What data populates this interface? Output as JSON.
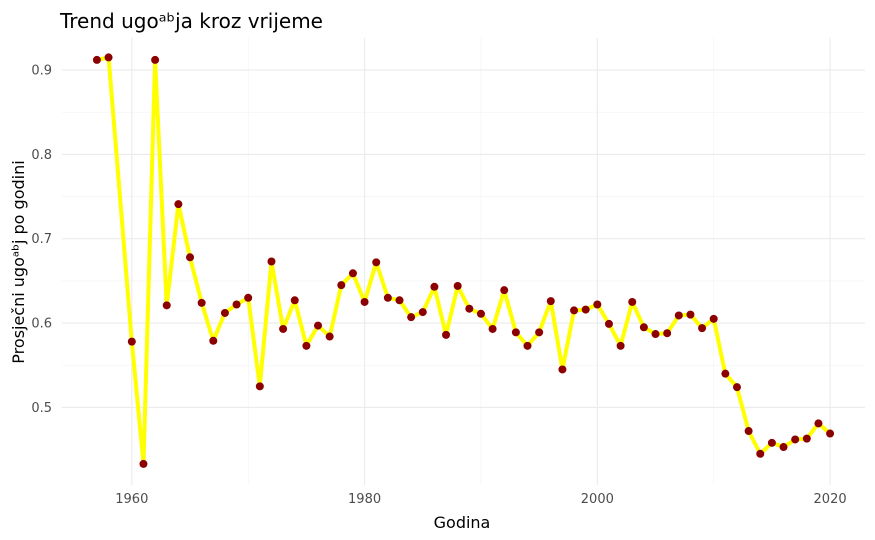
{
  "chart_data": {
    "type": "line",
    "title": "Trend ugoᵃᵇja kroz vrijeme",
    "xlabel": "Godina",
    "ylabel": "Prosječni ugoᵃᵇj po godini",
    "xlim": [
      1954,
      2023
    ],
    "ylim": [
      0.408,
      0.938
    ],
    "xticks": [
      1960,
      1980,
      2000,
      2020
    ],
    "yticks": [
      0.5,
      0.6,
      0.7,
      0.8,
      0.9
    ],
    "grid": true,
    "line_color": "#ffff00",
    "point_color": "#8b0000",
    "series": [
      {
        "x": [
          1957,
          1958,
          1960,
          1961,
          1962,
          1963,
          1964,
          1965,
          1966,
          1967,
          1968,
          1969,
          1970,
          1971,
          1972,
          1973,
          1974,
          1975,
          1976,
          1977,
          1978,
          1979,
          1980,
          1981,
          1982,
          1983,
          1984,
          1985,
          1986,
          1987,
          1988,
          1989,
          1990,
          1991,
          1992,
          1993,
          1994,
          1995,
          1996,
          1997,
          1998,
          1999,
          2000,
          2001,
          2002,
          2003,
          2004,
          2005,
          2006,
          2007,
          2008,
          2009,
          2010,
          2011,
          2012,
          2013,
          2014,
          2015,
          2016,
          2017,
          2018,
          2019,
          2020
        ],
        "y": [
          0.912,
          0.915,
          0.578,
          0.433,
          0.912,
          0.621,
          0.741,
          0.678,
          0.624,
          0.579,
          0.612,
          0.622,
          0.63,
          0.525,
          0.673,
          0.593,
          0.627,
          0.573,
          0.597,
          0.584,
          0.645,
          0.659,
          0.625,
          0.672,
          0.63,
          0.627,
          0.607,
          0.613,
          0.643,
          0.586,
          0.644,
          0.617,
          0.611,
          0.593,
          0.639,
          0.589,
          0.573,
          0.589,
          0.626,
          0.545,
          0.615,
          0.616,
          0.622,
          0.599,
          0.573,
          0.625,
          0.595,
          0.587,
          0.588,
          0.609,
          0.61,
          0.594,
          0.605,
          0.54,
          0.524,
          0.472,
          0.445,
          0.458,
          0.453,
          0.462,
          0.463,
          0.481,
          0.469
        ]
      }
    ]
  }
}
